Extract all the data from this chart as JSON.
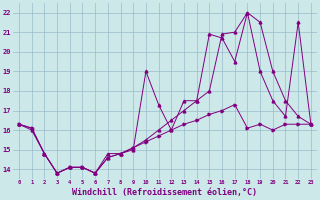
{
  "xlabel": "Windchill (Refroidissement éolien,°C)",
  "xlabel_fontsize": 6,
  "bg_color": "#cce8e8",
  "line_color": "#800080",
  "grid_color": "#99bbcc",
  "x_ticks": [
    0,
    1,
    2,
    3,
    4,
    5,
    6,
    7,
    8,
    9,
    10,
    11,
    12,
    13,
    14,
    15,
    16,
    17,
    18,
    19,
    20,
    21,
    22,
    23
  ],
  "y_ticks": [
    14,
    15,
    16,
    17,
    18,
    19,
    20,
    21,
    22
  ],
  "ylim": [
    13.5,
    22.5
  ],
  "xlim": [
    -0.5,
    23.5
  ],
  "line1_x": [
    0,
    1,
    2,
    3,
    4,
    5,
    6,
    7,
    8,
    9,
    10,
    11,
    12,
    13,
    14,
    15,
    16,
    17,
    18,
    19,
    20,
    21,
    22,
    23
  ],
  "line1_y": [
    16.3,
    16.0,
    14.8,
    13.8,
    14.1,
    14.1,
    13.8,
    14.8,
    14.8,
    15.0,
    19.0,
    17.3,
    16.0,
    17.5,
    17.5,
    20.9,
    20.7,
    19.5,
    22.0,
    21.5,
    19.0,
    17.5,
    16.7,
    16.3
  ],
  "line2_x": [
    0,
    1,
    2,
    3,
    4,
    5,
    6,
    7,
    8,
    9,
    10,
    11,
    12,
    13,
    14,
    15,
    16,
    17,
    18,
    19,
    20,
    21,
    22,
    23
  ],
  "line2_y": [
    16.3,
    16.1,
    14.8,
    13.8,
    14.1,
    14.1,
    13.8,
    14.6,
    14.8,
    15.1,
    15.4,
    15.7,
    16.0,
    16.3,
    16.5,
    16.8,
    17.0,
    17.3,
    16.1,
    16.3,
    16.0,
    16.3,
    16.3,
    16.3
  ],
  "line3_x": [
    0,
    1,
    2,
    3,
    4,
    5,
    6,
    7,
    8,
    9,
    10,
    11,
    12,
    13,
    14,
    15,
    16,
    17,
    18,
    19,
    20,
    21,
    22,
    23
  ],
  "line3_y": [
    16.3,
    16.1,
    14.8,
    13.8,
    14.1,
    14.1,
    13.8,
    14.6,
    14.8,
    15.1,
    15.5,
    16.0,
    16.5,
    17.0,
    17.5,
    18.0,
    20.9,
    21.0,
    22.0,
    19.0,
    17.5,
    16.7,
    21.5,
    16.3
  ]
}
